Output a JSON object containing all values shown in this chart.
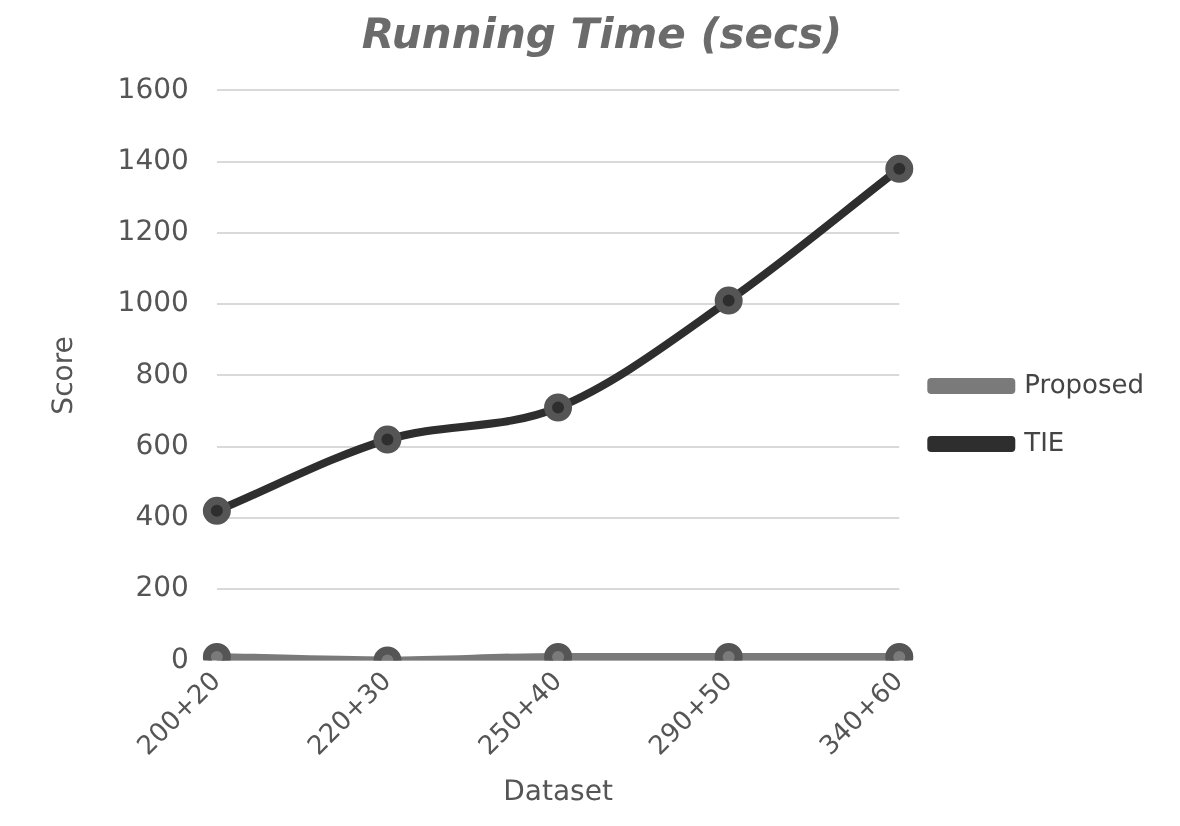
{
  "chart_data": {
    "type": "line",
    "title": "Running Time (secs)",
    "xlabel": "Dataset",
    "ylabel": "Score",
    "categories": [
      "200+20",
      "220+30",
      "250+40",
      "290+50",
      "340+60"
    ],
    "series": [
      {
        "name": "Proposed",
        "color": "#7a7a7a",
        "values": [
          10,
          0,
          10,
          10,
          10
        ]
      },
      {
        "name": "TIE",
        "color": "#2e2e2e",
        "values": [
          420,
          620,
          710,
          1010,
          1380
        ]
      }
    ],
    "ylim": [
      0,
      1600
    ],
    "yticks": [
      0,
      200,
      400,
      600,
      800,
      1000,
      1200,
      1400,
      1600
    ],
    "grid": "y",
    "legend": "right",
    "marker": "circle",
    "line_style": "solid"
  }
}
